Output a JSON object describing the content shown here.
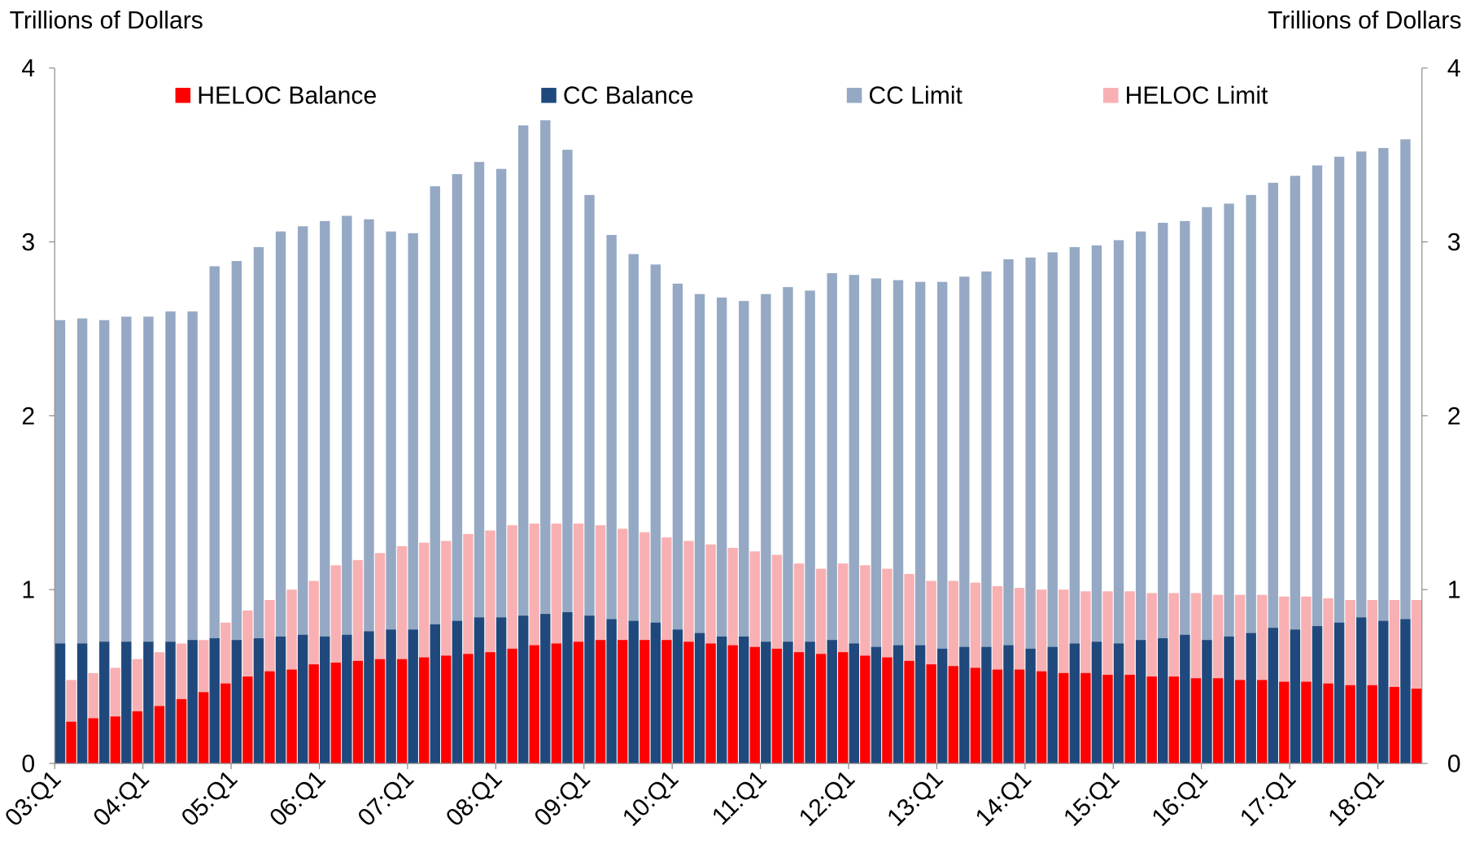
{
  "chart_data": {
    "type": "bar",
    "mode": "overlap",
    "y_label": "Trillions of Dollars",
    "y2_label": "Trillions of Dollars",
    "categories": [
      "03:Q1",
      null,
      null,
      null,
      "04:Q1",
      null,
      null,
      null,
      "05:Q1",
      null,
      null,
      null,
      "06:Q1",
      null,
      null,
      null,
      "07:Q1",
      null,
      null,
      null,
      "08:Q1",
      null,
      null,
      null,
      "09:Q1",
      null,
      null,
      null,
      "10:Q1",
      null,
      null,
      null,
      "11:Q1",
      null,
      null,
      null,
      "12:Q1",
      null,
      null,
      null,
      "13:Q1",
      null,
      null,
      null,
      "14:Q1",
      null,
      null,
      null,
      "15:Q1",
      null,
      null,
      null,
      "16:Q1",
      null,
      null,
      null,
      "17:Q1",
      null,
      null,
      null,
      "18:Q1",
      null
    ],
    "series": [
      {
        "name": "HELOC Balance",
        "color": "#ff0000",
        "values": [
          0.24,
          0.26,
          0.27,
          0.3,
          0.33,
          0.37,
          0.41,
          0.46,
          0.5,
          0.53,
          0.54,
          0.57,
          0.58,
          0.59,
          0.6,
          0.6,
          0.61,
          0.62,
          0.63,
          0.64,
          0.66,
          0.68,
          0.69,
          0.7,
          0.71,
          0.71,
          0.71,
          0.71,
          0.7,
          0.69,
          0.68,
          0.67,
          0.66,
          0.64,
          0.63,
          0.64,
          0.62,
          0.61,
          0.59,
          0.57,
          0.56,
          0.55,
          0.54,
          0.54,
          0.53,
          0.52,
          0.52,
          0.51,
          0.51,
          0.5,
          0.5,
          0.49,
          0.49,
          0.48,
          0.48,
          0.47,
          0.47,
          0.46,
          0.45,
          0.45,
          0.44,
          0.43
        ]
      },
      {
        "name": "CC Balance",
        "color": "#1f497d",
        "values": [
          0.69,
          0.69,
          0.7,
          0.7,
          0.7,
          0.7,
          0.71,
          0.72,
          0.71,
          0.72,
          0.73,
          0.74,
          0.73,
          0.74,
          0.76,
          0.77,
          0.77,
          0.8,
          0.82,
          0.84,
          0.84,
          0.85,
          0.86,
          0.87,
          0.85,
          0.83,
          0.82,
          0.81,
          0.77,
          0.75,
          0.73,
          0.73,
          0.7,
          0.7,
          0.7,
          0.71,
          0.69,
          0.67,
          0.68,
          0.68,
          0.66,
          0.67,
          0.67,
          0.68,
          0.66,
          0.67,
          0.69,
          0.7,
          0.69,
          0.71,
          0.72,
          0.74,
          0.71,
          0.73,
          0.75,
          0.78,
          0.77,
          0.79,
          0.81,
          0.84,
          0.82,
          0.83
        ]
      },
      {
        "name": "CC Limit",
        "color": "#95a9c4",
        "values": [
          2.55,
          2.56,
          2.55,
          2.57,
          2.57,
          2.6,
          2.6,
          2.86,
          2.89,
          2.97,
          3.06,
          3.09,
          3.12,
          3.15,
          3.13,
          3.06,
          3.05,
          3.32,
          3.39,
          3.46,
          3.42,
          3.67,
          3.7,
          3.53,
          3.27,
          3.04,
          2.93,
          2.87,
          2.76,
          2.7,
          2.68,
          2.66,
          2.7,
          2.74,
          2.72,
          2.82,
          2.81,
          2.79,
          2.78,
          2.77,
          2.77,
          2.8,
          2.83,
          2.9,
          2.91,
          2.94,
          2.97,
          2.98,
          3.01,
          3.06,
          3.11,
          3.12,
          3.2,
          3.22,
          3.27,
          3.34,
          3.38,
          3.44,
          3.49,
          3.52,
          3.54,
          3.59
        ]
      },
      {
        "name": "HELOC Limit",
        "color": "#f9b0b2",
        "values": [
          0.48,
          0.52,
          0.55,
          0.6,
          0.64,
          0.69,
          0.71,
          0.81,
          0.88,
          0.94,
          1.0,
          1.05,
          1.14,
          1.17,
          1.21,
          1.25,
          1.27,
          1.28,
          1.32,
          1.34,
          1.37,
          1.38,
          1.38,
          1.38,
          1.37,
          1.35,
          1.33,
          1.3,
          1.28,
          1.26,
          1.24,
          1.22,
          1.2,
          1.15,
          1.12,
          1.15,
          1.14,
          1.12,
          1.09,
          1.05,
          1.05,
          1.04,
          1.02,
          1.01,
          1.0,
          1.0,
          0.99,
          0.99,
          0.99,
          0.98,
          0.98,
          0.98,
          0.97,
          0.97,
          0.97,
          0.96,
          0.96,
          0.95,
          0.94,
          0.94,
          0.94,
          0.94
        ]
      }
    ],
    "ylim": [
      0,
      4
    ],
    "yticks": [
      0,
      1,
      2,
      3,
      4
    ],
    "y2lim": [
      0,
      4
    ],
    "y2ticks": [
      0,
      1,
      2,
      3,
      4
    ],
    "grid": false,
    "legend": "top"
  }
}
